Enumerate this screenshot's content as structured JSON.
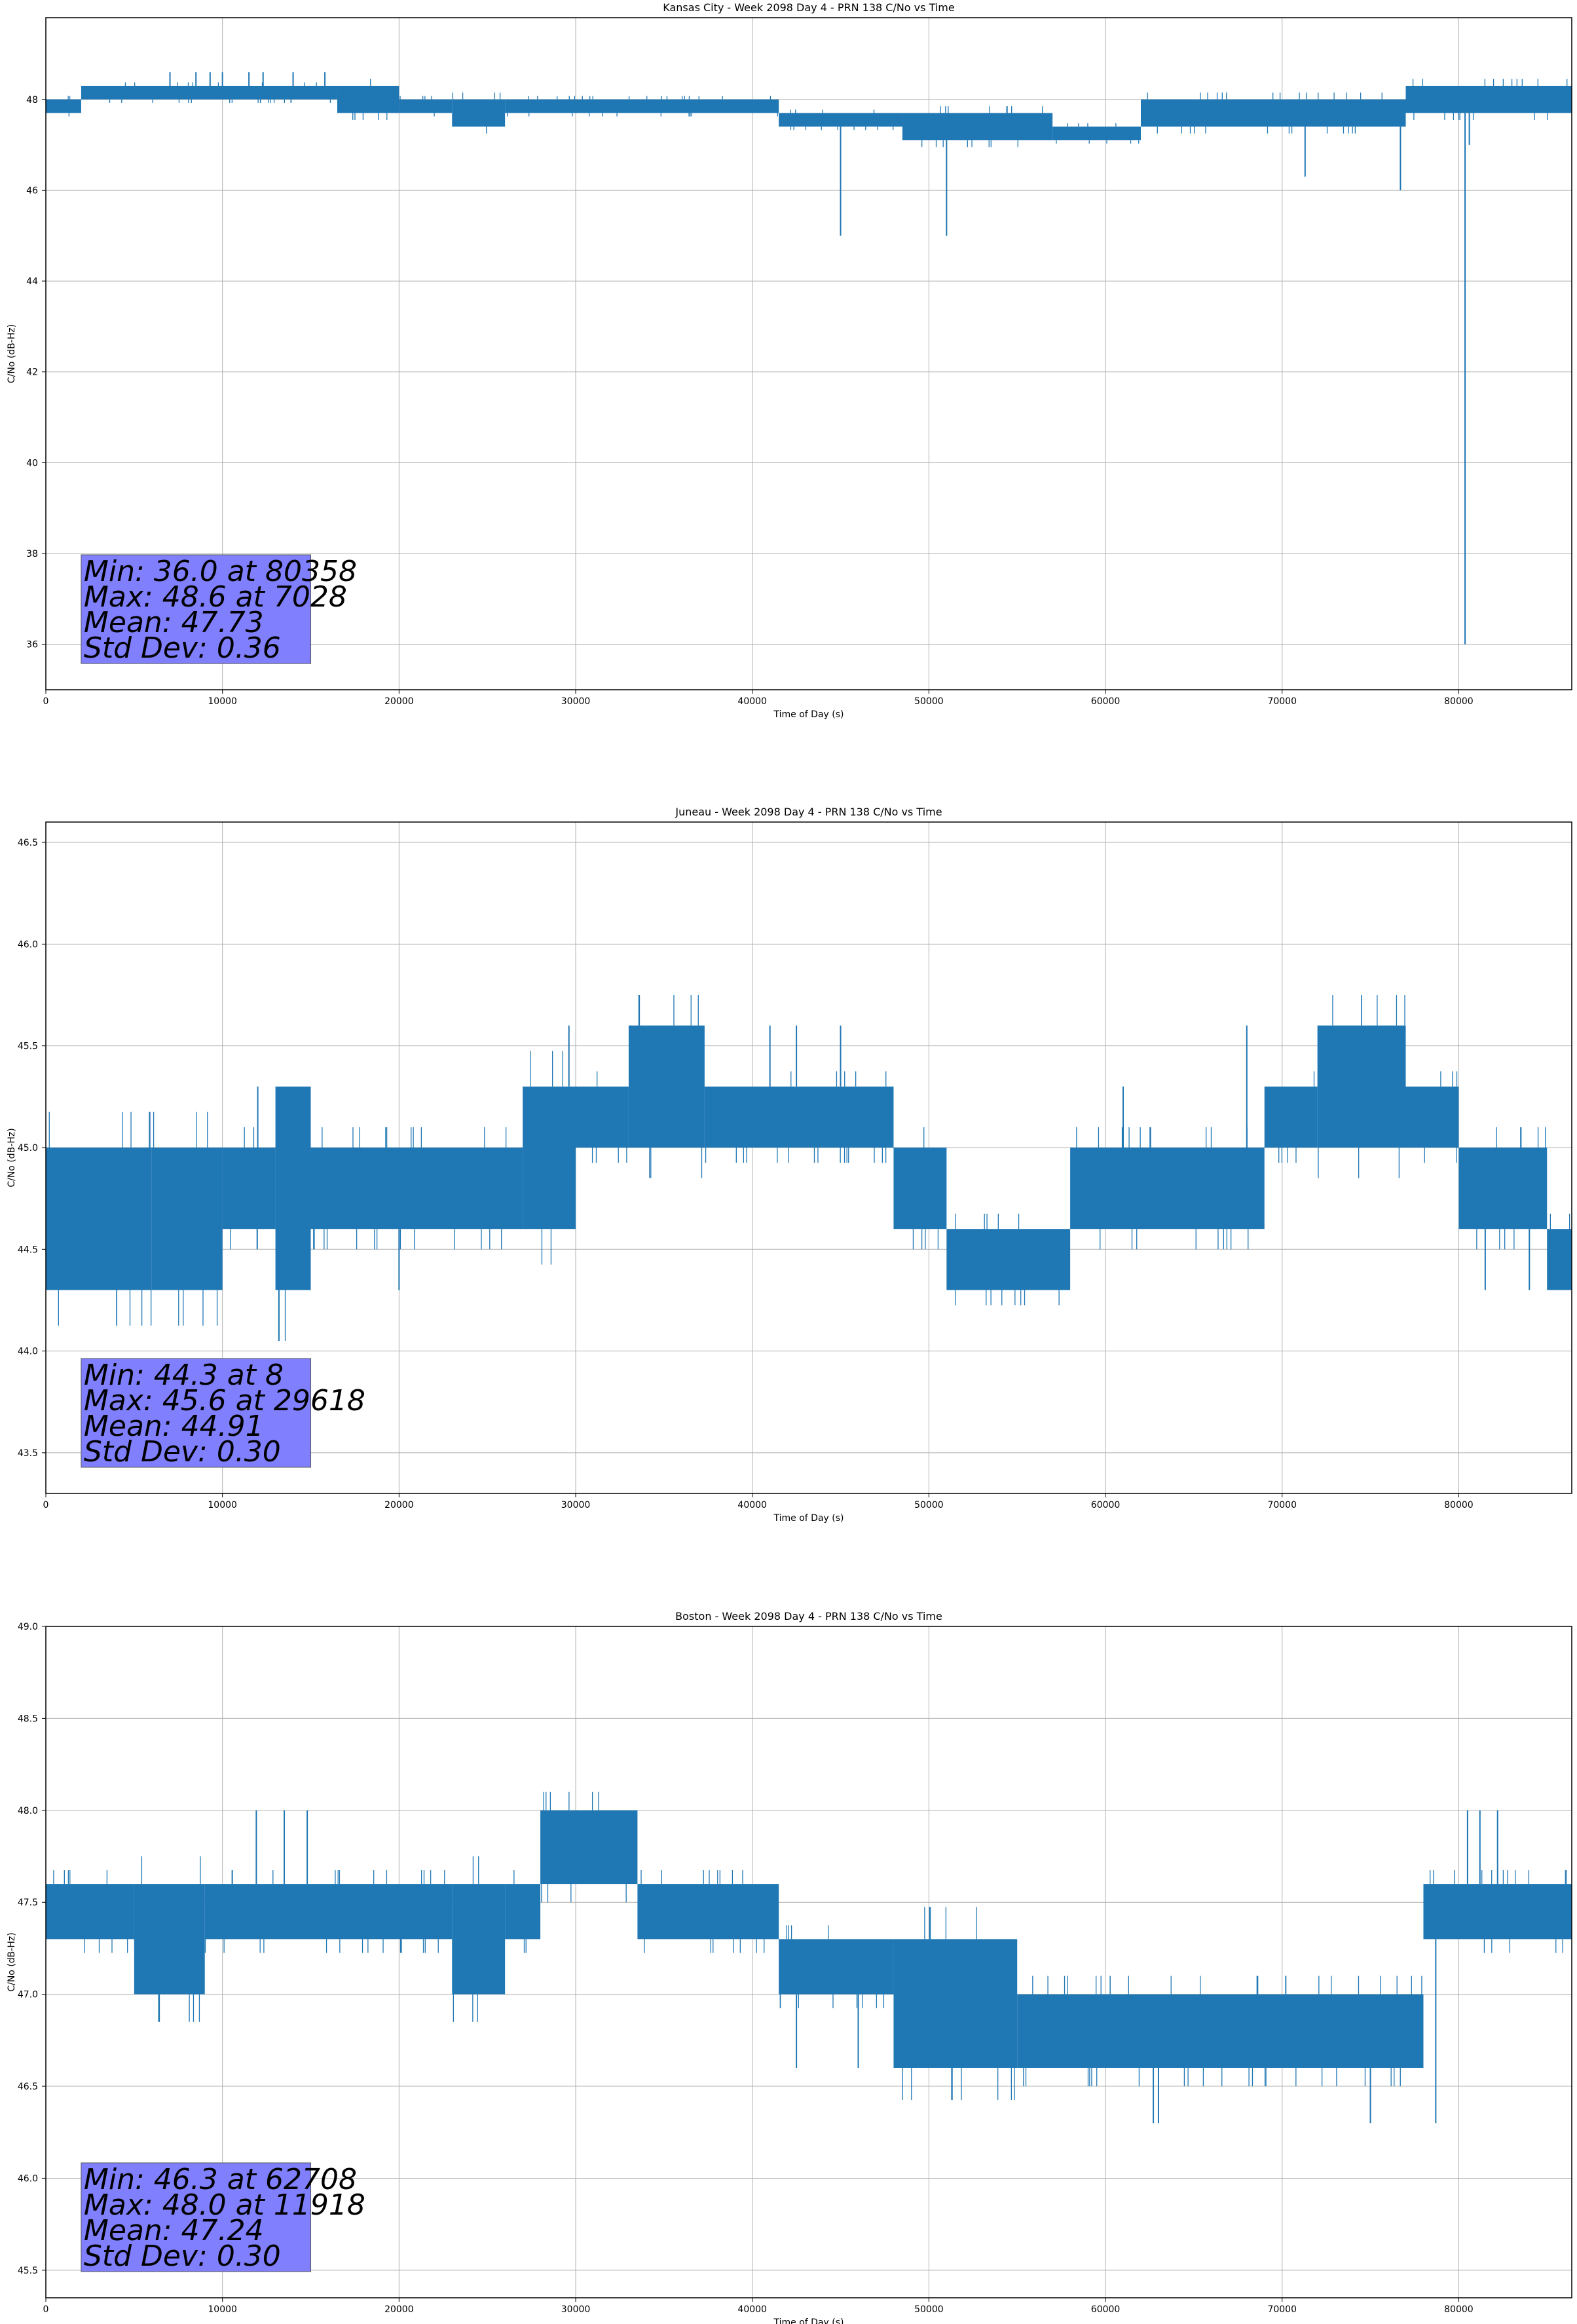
{
  "chart_data": [
    {
      "type": "line",
      "title": "Kansas City - Week 2098 Day 4 - PRN 138 C/No vs Time",
      "xlabel": "Time of Day (s)",
      "ylabel": "C/No (dB-Hz)",
      "xlim": [
        0,
        86400
      ],
      "ylim": [
        35.0,
        49.8
      ],
      "xticks": [
        0,
        10000,
        20000,
        30000,
        40000,
        50000,
        60000,
        70000,
        80000
      ],
      "yticks": [
        36,
        38,
        40,
        42,
        44,
        46,
        48
      ],
      "grid": true,
      "line_color": "#1f77b4",
      "stats_box_color": "#8080ff",
      "stats": [
        "Min: 36.0 at 80358",
        "Max: 48.6 at 7028",
        "Mean: 47.73",
        "Std Dev: 0.36"
      ],
      "series": [
        {
          "bands": [
            [
              0,
              2000,
              47.7,
              48.0
            ],
            [
              2000,
              16500,
              48.0,
              48.3
            ],
            [
              16500,
              20000,
              47.7,
              48.3
            ],
            [
              20000,
              23000,
              47.7,
              48.0
            ],
            [
              23000,
              26000,
              47.4,
              48.0
            ],
            [
              26000,
              41500,
              47.7,
              48.0
            ],
            [
              41500,
              48500,
              47.4,
              47.7
            ],
            [
              48500,
              57000,
              47.1,
              47.7
            ],
            [
              57000,
              62000,
              47.1,
              47.4
            ],
            [
              62000,
              77000,
              47.4,
              48.0
            ],
            [
              77000,
              86400,
              47.7,
              48.3
            ]
          ],
          "spikes": [
            [
              7028,
              48.6
            ],
            [
              8500,
              48.6
            ],
            [
              9300,
              48.6
            ],
            [
              10000,
              48.6
            ],
            [
              11500,
              48.6
            ],
            [
              12300,
              48.6
            ],
            [
              14000,
              48.6
            ],
            [
              15800,
              48.6
            ],
            [
              45000,
              45.0
            ],
            [
              51000,
              45.0
            ],
            [
              71300,
              46.3
            ],
            [
              76700,
              46.0
            ],
            [
              80358,
              36.0
            ],
            [
              80600,
              47.0
            ]
          ]
        }
      ]
    },
    {
      "type": "line",
      "title": "Juneau - Week 2098 Day 4 - PRN 138 C/No vs Time",
      "xlabel": "Time of Day (s)",
      "ylabel": "C/No (dB-Hz)",
      "xlim": [
        0,
        86400
      ],
      "ylim": [
        43.3,
        46.6
      ],
      "xticks": [
        0,
        10000,
        20000,
        30000,
        40000,
        50000,
        60000,
        70000,
        80000
      ],
      "yticks": [
        43.5,
        44.0,
        44.5,
        45.0,
        45.5,
        46.0,
        46.5
      ],
      "grid": true,
      "line_color": "#1f77b4",
      "stats_box_color": "#8080ff",
      "stats": [
        "Min: 44.3 at 8",
        "Max: 45.6 at 29618",
        "Mean: 44.91",
        "Std Dev: 0.30"
      ],
      "series": [
        {
          "bands": [
            [
              0,
              6000,
              44.3,
              45.0
            ],
            [
              6000,
              10000,
              44.3,
              45.0
            ],
            [
              10000,
              13000,
              44.6,
              45.0
            ],
            [
              13000,
              15000,
              44.3,
              45.3
            ],
            [
              15000,
              27000,
              44.6,
              45.0
            ],
            [
              27000,
              30000,
              44.6,
              45.3
            ],
            [
              30000,
              33000,
              45.0,
              45.3
            ],
            [
              33000,
              37300,
              45.0,
              45.6
            ],
            [
              37300,
              48000,
              45.0,
              45.3
            ],
            [
              48000,
              51000,
              44.6,
              45.0
            ],
            [
              51000,
              58000,
              44.3,
              44.6
            ],
            [
              58000,
              60000,
              44.6,
              45.0
            ],
            [
              60000,
              69000,
              44.6,
              45.0
            ],
            [
              69000,
              72000,
              45.0,
              45.3
            ],
            [
              72000,
              77000,
              45.0,
              45.6
            ],
            [
              77000,
              80000,
              45.0,
              45.3
            ],
            [
              80000,
              85000,
              44.6,
              45.0
            ],
            [
              85000,
              86400,
              44.3,
              44.6
            ]
          ],
          "spikes": [
            [
              29618,
              45.6
            ],
            [
              41000,
              45.6
            ],
            [
              42500,
              45.6
            ],
            [
              45000,
              45.6
            ],
            [
              68000,
              45.6
            ],
            [
              81500,
              44.3
            ],
            [
              84000,
              44.3
            ],
            [
              61000,
              45.3
            ],
            [
              12000,
              45.3
            ],
            [
              20000,
              44.3
            ]
          ]
        }
      ]
    },
    {
      "type": "line",
      "title": "Boston - Week 2098 Day 4 - PRN 138 C/No vs Time",
      "xlabel": "Time of Day (s)",
      "ylabel": "C/No (dB-Hz)",
      "xlim": [
        0,
        86400
      ],
      "ylim": [
        45.35,
        49.0
      ],
      "xticks": [
        0,
        10000,
        20000,
        30000,
        40000,
        50000,
        60000,
        70000,
        80000
      ],
      "yticks": [
        45.5,
        46.0,
        46.5,
        47.0,
        47.5,
        48.0,
        48.5,
        49.0
      ],
      "grid": true,
      "line_color": "#1f77b4",
      "stats_box_color": "#8080ff",
      "stats": [
        "Min: 46.3 at 62708",
        "Max: 48.0 at 11918",
        "Mean: 47.24",
        "Std Dev: 0.30"
      ],
      "series": [
        {
          "bands": [
            [
              0,
              5000,
              47.3,
              47.6
            ],
            [
              5000,
              9000,
              47.0,
              47.6
            ],
            [
              9000,
              23000,
              47.3,
              47.6
            ],
            [
              23000,
              26000,
              47.0,
              47.6
            ],
            [
              26000,
              28000,
              47.3,
              47.6
            ],
            [
              28000,
              33500,
              47.6,
              48.0
            ],
            [
              33500,
              41500,
              47.3,
              47.6
            ],
            [
              41500,
              48000,
              47.0,
              47.3
            ],
            [
              48000,
              55000,
              46.6,
              47.3
            ],
            [
              55000,
              78000,
              46.6,
              47.0
            ],
            [
              78000,
              86400,
              47.3,
              47.6
            ]
          ],
          "spikes": [
            [
              11918,
              48.0
            ],
            [
              13500,
              48.0
            ],
            [
              14800,
              48.0
            ],
            [
              62708,
              46.3
            ],
            [
              63000,
              46.3
            ],
            [
              75000,
              46.3
            ],
            [
              78700,
              46.3
            ],
            [
              80500,
              48.0
            ],
            [
              81200,
              48.0
            ],
            [
              82200,
              48.0
            ],
            [
              42500,
              46.6
            ],
            [
              46000,
              46.6
            ]
          ]
        }
      ]
    }
  ]
}
